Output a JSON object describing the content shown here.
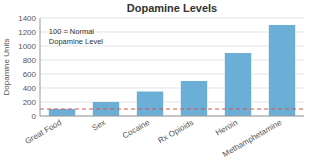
{
  "chart_data": {
    "type": "bar",
    "title": "Dopamine Levels",
    "ylabel": "Dopamine Units",
    "categories": [
      "Great Food",
      "Sex",
      "Cocaine",
      "Rx Opioids",
      "Heroin",
      "Methamphetamine"
    ],
    "values": [
      100,
      200,
      350,
      500,
      900,
      1300
    ],
    "color": "#6BAED6",
    "ylim": [
      0,
      1400
    ],
    "yticks": [
      0,
      200,
      400,
      600,
      800,
      1000,
      1200,
      1400
    ],
    "grid": true,
    "reference_line": {
      "value": 100,
      "color": "#D9534F"
    },
    "annotation": "100 = Normal\nDopamine Level"
  }
}
